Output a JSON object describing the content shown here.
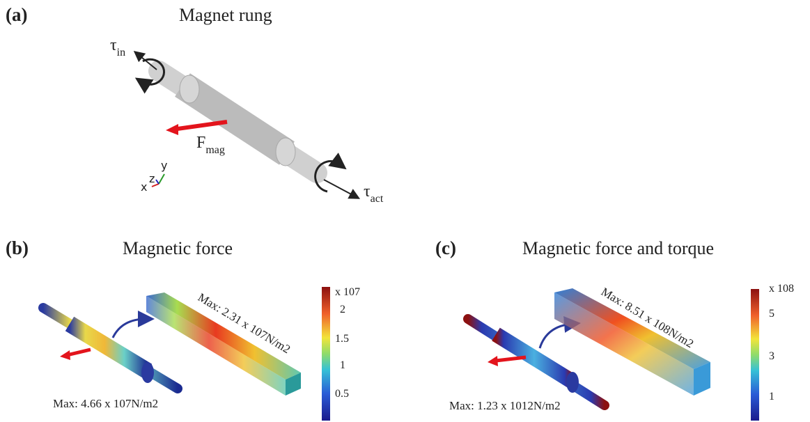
{
  "panel_a": {
    "label": "(a)",
    "title": "Magnet rung",
    "tau_in": {
      "symbol": "τ",
      "subscript": "in"
    },
    "f_mag": {
      "symbol": "F",
      "subscript": "mag"
    },
    "tau_act": {
      "symbol": "τ",
      "subscript": "act"
    },
    "axes": {
      "x": "x",
      "y": "y",
      "z": "z"
    }
  },
  "panel_b": {
    "label": "(b)",
    "title": "Magnetic force",
    "colorbar": {
      "exponent": "x 107",
      "ticks": [
        "2",
        "1.5",
        "1",
        "0.5"
      ]
    },
    "max_box": "Max: 2.31 x 107N/m2",
    "max_rod": "Max: 4.66 x 107N/m2"
  },
  "panel_c": {
    "label": "(c)",
    "title": "Magnetic force and torque",
    "colorbar": {
      "exponent": "x 108",
      "ticks": [
        "5",
        "3",
        "1"
      ]
    },
    "max_box": "Max: 8.51 x 108N/m2",
    "max_rod": "Max: 1.23 x 1012N/m2"
  }
}
